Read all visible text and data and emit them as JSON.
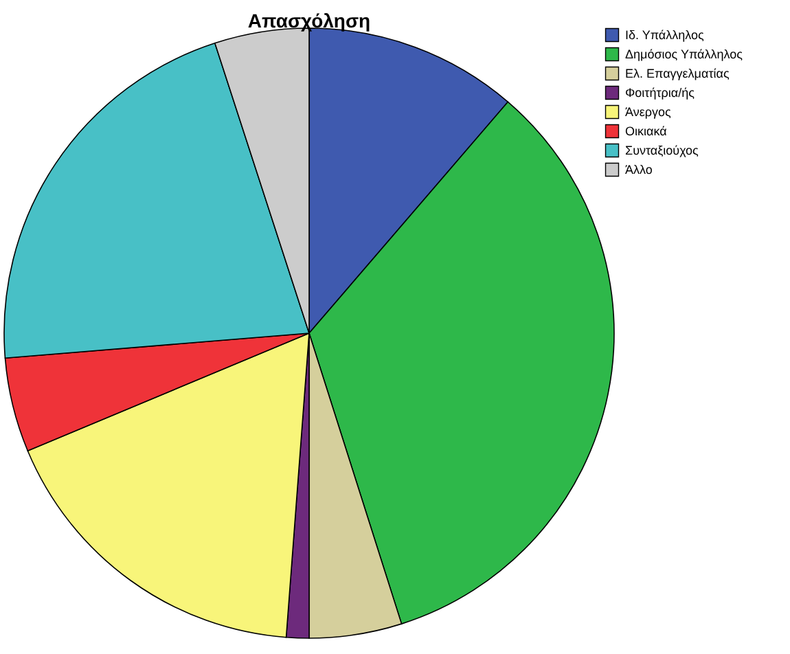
{
  "chart_data": {
    "type": "pie",
    "title": "Απασχόληση",
    "categories": [
      "Ιδ. Υπάλληλος",
      "Δημόσιος Υπάλληλος",
      "Ελ. Επαγγελματίας",
      "Φοιτήτρια/ής",
      "Άνεργος",
      "Οικιακά",
      "Συνταξιούχος",
      "Άλλο"
    ],
    "values": [
      11.3,
      33.8,
      4.9,
      1.2,
      17.5,
      5.0,
      21.3,
      5.0
    ],
    "colors": [
      "#3f5aaf",
      "#2eb84a",
      "#d5cf9c",
      "#6d2a7c",
      "#f8f57a",
      "#ef3339",
      "#48c0c6",
      "#cccccc"
    ],
    "legend": "top right"
  }
}
